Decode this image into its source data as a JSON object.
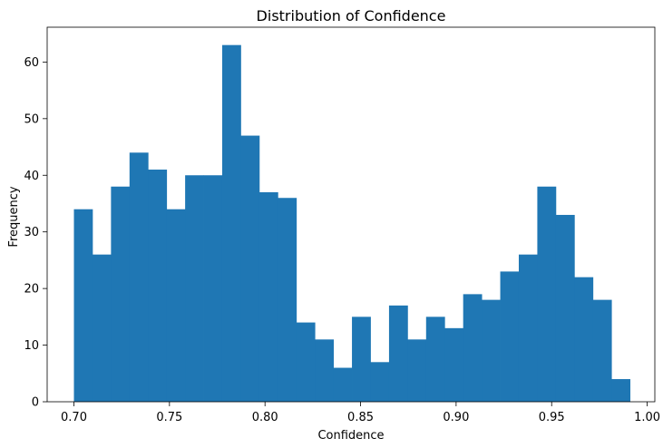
{
  "chart_data": {
    "type": "bar",
    "title": "Distribution of Confidence",
    "xlabel": "Confidence",
    "ylabel": "Frequency",
    "xlim": [
      0.686,
      1.004
    ],
    "ylim": [
      0,
      66.15
    ],
    "xticks": [
      0.7,
      0.75,
      0.8,
      0.85,
      0.9,
      0.95,
      1.0
    ],
    "xtick_labels": [
      "0.70",
      "0.75",
      "0.80",
      "0.85",
      "0.90",
      "0.95",
      "1.00"
    ],
    "yticks": [
      0,
      10,
      20,
      30,
      40,
      50,
      60
    ],
    "ytick_labels": [
      "0",
      "10",
      "20",
      "30",
      "40",
      "50",
      "60"
    ],
    "bin_start": 0.7,
    "bin_width": 0.0097,
    "values": [
      34,
      26,
      38,
      44,
      41,
      34,
      40,
      40,
      63,
      47,
      37,
      36,
      14,
      11,
      6,
      15,
      7,
      17,
      11,
      15,
      13,
      19,
      18,
      23,
      26,
      38,
      33,
      22,
      18,
      4
    ],
    "grid": false,
    "bar_color": "#1f77b4"
  }
}
